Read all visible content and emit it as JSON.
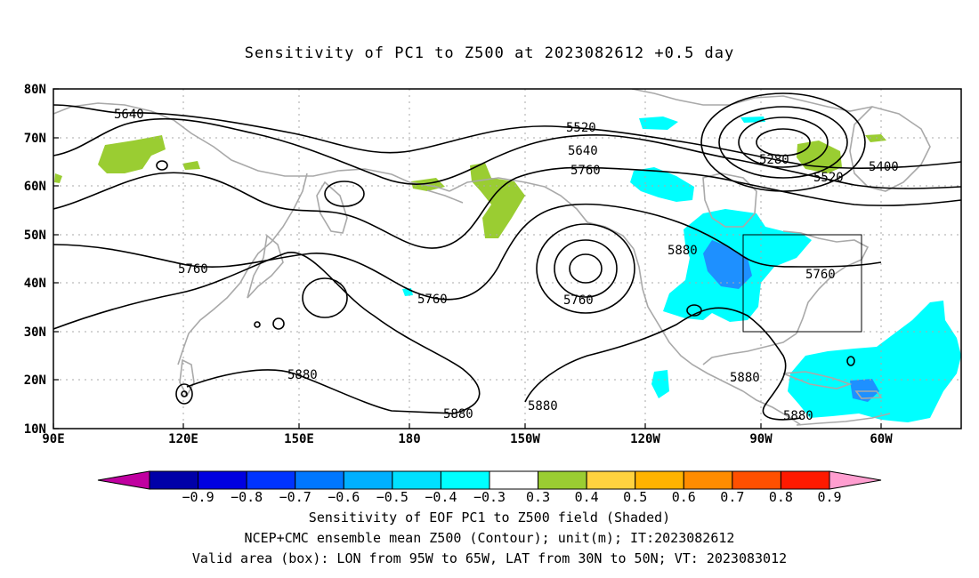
{
  "title": "Sensitivity of PC1 to Z500 at 2023082612 +0.5 day",
  "map": {
    "lat_ticks": [
      "80N",
      "70N",
      "60N",
      "50N",
      "40N",
      "30N",
      "20N",
      "10N"
    ],
    "lon_ticks": [
      "90E",
      "120E",
      "150E",
      "180",
      "150W",
      "120W",
      "90W",
      "60W"
    ],
    "contour_labels": [
      "5640",
      "5520",
      "5640",
      "5760",
      "5280",
      "5400",
      "5520",
      "5760",
      "5880",
      "5760",
      "5760",
      "5880",
      "5880",
      "5880",
      "5880",
      "5880"
    ],
    "box": {
      "lon_range": "95W to 65W",
      "lat_range": "30N to 50N"
    },
    "colors": {
      "contour": "#000000",
      "coastline": "#a9a9a9",
      "grid": "#a9a9a9",
      "green": "#9acd32",
      "cyan": "#00ffff",
      "light_cyan": "#00cfff",
      "blue": "#1e90ff"
    }
  },
  "colorbar": {
    "labels": [
      "−0.9",
      "−0.8",
      "−0.7",
      "−0.6",
      "−0.5",
      "−0.4",
      "−0.3",
      "0.3",
      "0.4",
      "0.5",
      "0.6",
      "0.7",
      "0.8",
      "0.9"
    ],
    "colors": [
      "#0000a8",
      "#0000e0",
      "#0033ff",
      "#0077ff",
      "#00b0ff",
      "#00e0ff",
      "#00ffff",
      "#ffffff",
      "#9acd32",
      "#ffd23f",
      "#ffb300",
      "#ff8c00",
      "#ff5000",
      "#ff1a00"
    ],
    "left_arrow_color": "#c000a0",
    "right_arrow_color": "#ff9ed0"
  },
  "footer": {
    "line1": "Sensitivity of EOF PC1 to Z500 field (Shaded)",
    "line2": "NCEP+CMC ensemble mean Z500 (Contour); unit(m); IT:2023082612",
    "line3": "Valid area (box): LON from 95W to 65W, LAT from 30N to 50N; VT: 2023083012"
  }
}
